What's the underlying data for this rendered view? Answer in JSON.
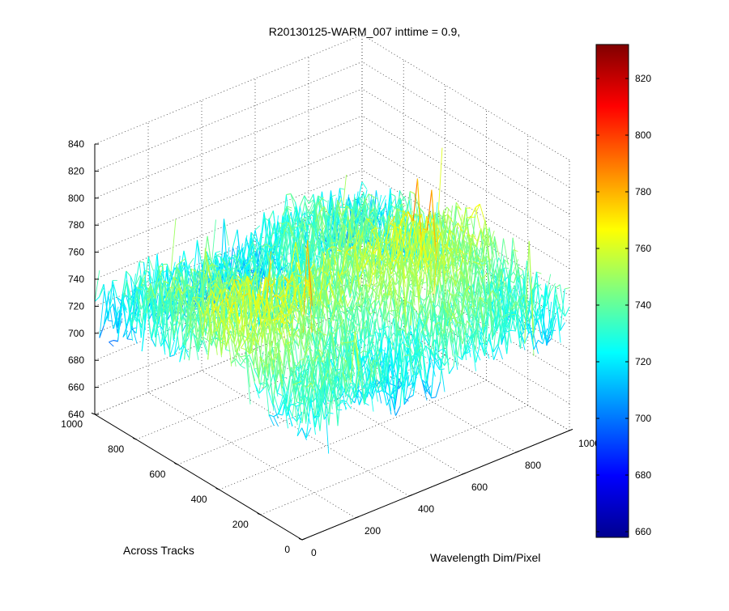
{
  "figure": {
    "title": "R20130125-WARM_007 inttime = 0.9,"
  },
  "chart_data": {
    "type": "surface",
    "title": "R20130125-WARM_007 inttime = 0.9,",
    "xlabel": "Wavelength Dim/Pixel",
    "ylabel": "Across Tracks",
    "zlabel": "",
    "x_range": [
      0,
      1000
    ],
    "y_range": [
      0,
      1000
    ],
    "z_range": [
      640,
      840
    ],
    "x_ticks": [
      "0",
      "200",
      "400",
      "600",
      "800",
      "1000"
    ],
    "y_ticks": [
      "0",
      "200",
      "400",
      "600",
      "800",
      "1000"
    ],
    "z_ticks": [
      "640",
      "660",
      "680",
      "700",
      "720",
      "740",
      "760",
      "780",
      "800",
      "820",
      "840"
    ],
    "grid": true,
    "colormap": "jet",
    "colorbar": {
      "range": [
        658,
        832
      ],
      "ticks": [
        "660",
        "680",
        "700",
        "720",
        "740",
        "760",
        "780",
        "800",
        "820"
      ]
    },
    "surface_summary": {
      "approx_baseline": 730,
      "approx_min": 658,
      "approx_max": 832,
      "notes": "noisy surface; higher (yellow-orange) band near middle across-track rows, lower values near across-track 1000 edge"
    }
  }
}
